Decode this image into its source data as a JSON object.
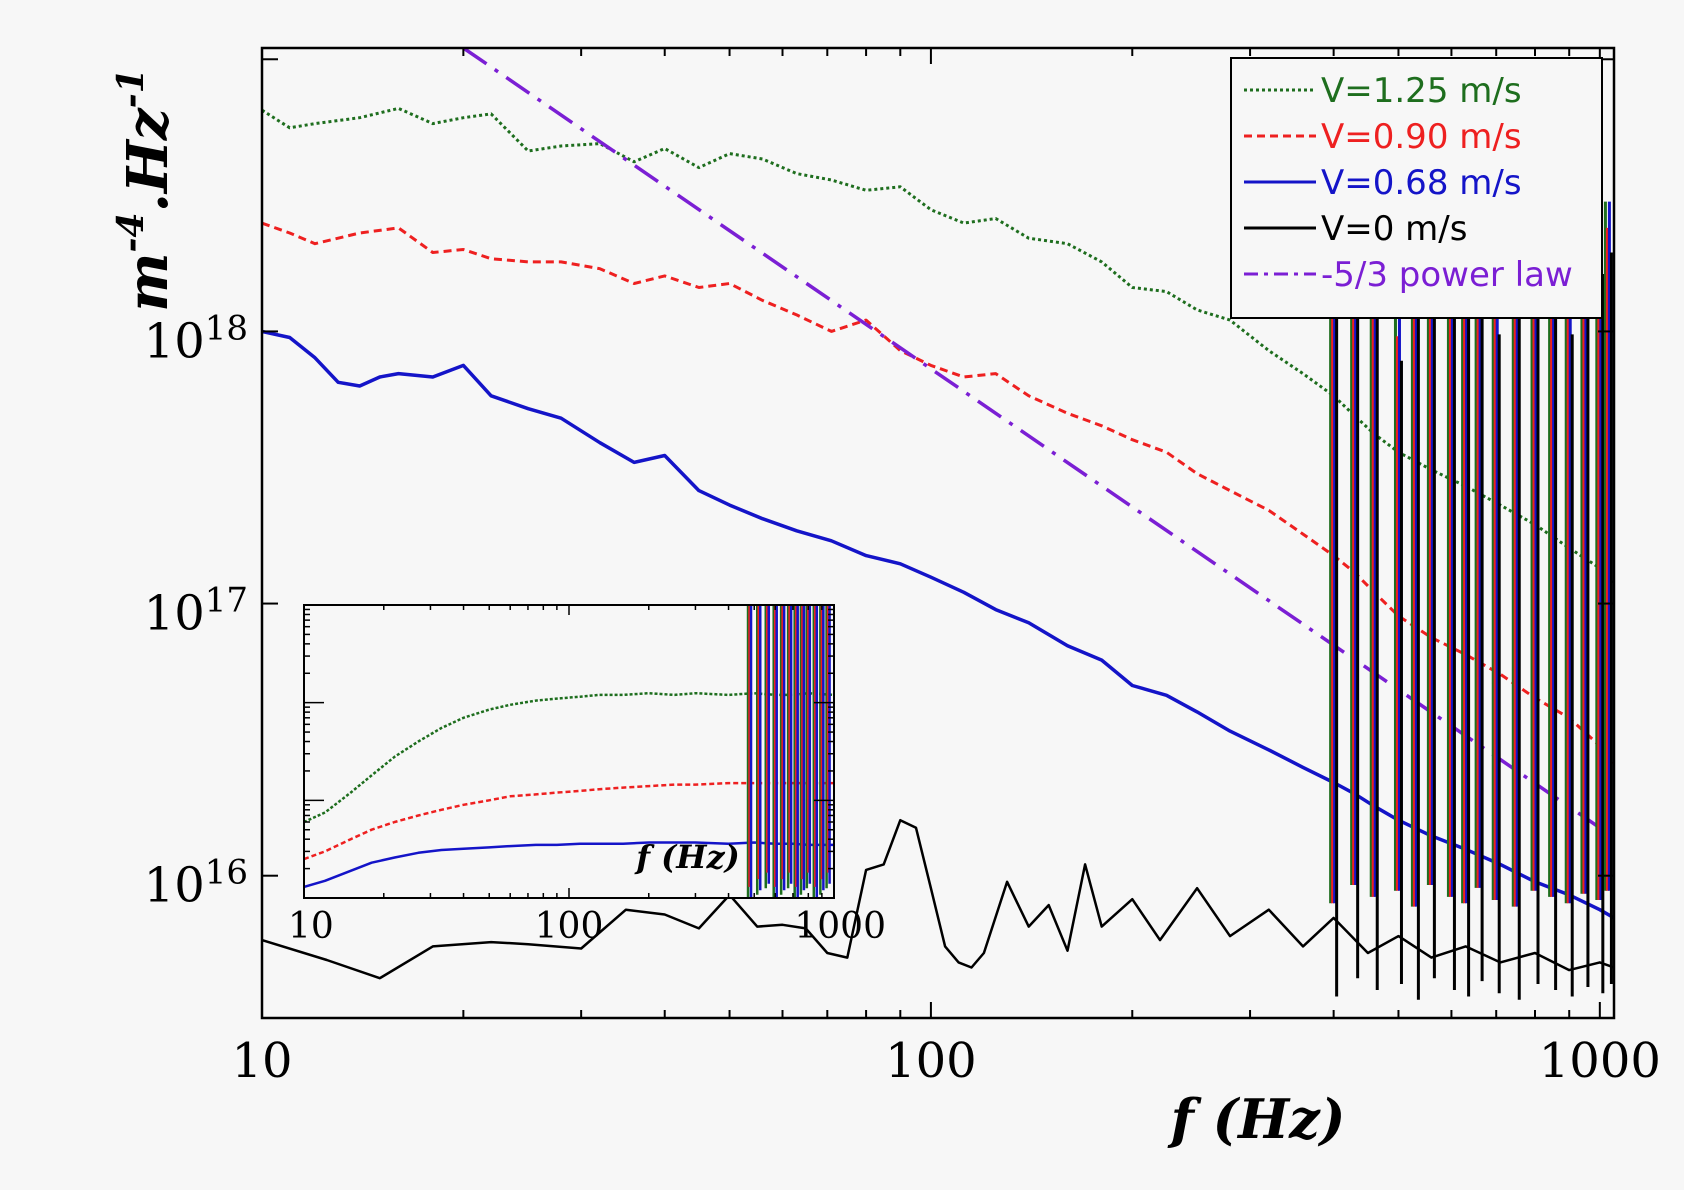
{
  "chart_data": {
    "type": "line",
    "x_scale": "log",
    "y_scale": "log",
    "xlim": [
      10,
      1050
    ],
    "ylim": [
      3000000000000000.0,
      1.1e+19
    ],
    "xlabel": "f (Hz)",
    "ylabel_base": "m",
    "ylabel_exp1": "-4",
    "ylabel_mid": ".Hz",
    "ylabel_exp2": "-1",
    "x_ticks": [
      {
        "value": 10,
        "label": "10"
      },
      {
        "value": 100,
        "label": "100"
      },
      {
        "value": 1000,
        "label": "1000"
      }
    ],
    "y_ticks": [
      {
        "value": 1e+16,
        "base": "10",
        "exp": "16"
      },
      {
        "value": 1e+17,
        "base": "10",
        "exp": "17"
      },
      {
        "value": 1e+18,
        "base": "10",
        "exp": "18"
      }
    ],
    "legend_position": "top-right",
    "series": [
      {
        "name": "V=1.25 m/s",
        "color": "#1e6e1e",
        "dash": "3,3",
        "width": 3,
        "x": [
          10,
          11,
          12,
          14,
          16,
          18,
          20,
          22,
          25,
          28,
          32,
          36,
          40,
          45,
          50,
          56,
          63,
          71,
          80,
          90,
          100,
          112,
          125,
          140,
          160,
          180,
          200,
          225,
          250,
          280,
          320,
          360,
          400,
          430,
          460,
          500,
          560,
          630,
          710,
          800,
          900,
          1000,
          1050
        ],
        "y": [
          6.5e+18,
          5.6e+18,
          5.8e+18,
          6.1e+18,
          6.6e+18,
          5.8e+18,
          6.1e+18,
          6.3e+18,
          4.6e+18,
          4.8e+18,
          4.9e+18,
          4.2e+18,
          4.7e+18,
          4e+18,
          4.5e+18,
          4.3e+18,
          3.8e+18,
          3.6e+18,
          3.3e+18,
          3.4e+18,
          2.8e+18,
          2.5e+18,
          2.6e+18,
          2.2e+18,
          2.1e+18,
          1.8e+18,
          1.45e+18,
          1.4e+18,
          1.2e+18,
          1.1e+18,
          8.5e+17,
          7e+17,
          5.8e+17,
          4.9e+17,
          4.2e+17,
          3.6e+17,
          3.1e+17,
          2.7e+17,
          2.3e+17,
          1.95e+17,
          1.6e+17,
          1.35e+17,
          1.2e+17
        ]
      },
      {
        "name": "V=0.90 m/s",
        "color": "#ee2020",
        "dash": "8,5",
        "width": 3,
        "x": [
          10,
          11,
          12,
          14,
          16,
          18,
          20,
          22,
          25,
          28,
          32,
          36,
          40,
          45,
          50,
          56,
          63,
          71,
          80,
          90,
          100,
          112,
          125,
          140,
          160,
          180,
          200,
          225,
          250,
          280,
          320,
          360,
          400,
          430,
          460,
          500,
          560,
          630,
          710,
          800,
          900,
          1000,
          1050
        ],
        "y": [
          2.5e+18,
          2.3e+18,
          2.1e+18,
          2.3e+18,
          2.4e+18,
          1.95e+18,
          2e+18,
          1.85e+18,
          1.8e+18,
          1.8e+18,
          1.7e+18,
          1.5e+18,
          1.6e+18,
          1.45e+18,
          1.5e+18,
          1.3e+18,
          1.15e+18,
          1e+18,
          1.1e+18,
          8.5e+17,
          7.5e+17,
          6.8e+17,
          7e+17,
          5.8e+17,
          5e+17,
          4.5e+17,
          4e+17,
          3.6e+17,
          3e+17,
          2.6e+17,
          2.2e+17,
          1.8e+17,
          1.5e+17,
          1.3e+17,
          1.1e+17,
          9e+16,
          7.5e+16,
          6.5e+16,
          5.5e+16,
          4.5e+16,
          3.8e+16,
          3e+16,
          2.6e+16
        ]
      },
      {
        "name": "V=0.68 m/s",
        "color": "#1414c8",
        "dash": "",
        "width": 3.5,
        "x": [
          10,
          11,
          12,
          13,
          14,
          15,
          16,
          18,
          20,
          22,
          25,
          28,
          32,
          36,
          40,
          45,
          50,
          56,
          63,
          71,
          80,
          90,
          100,
          112,
          125,
          140,
          160,
          180,
          200,
          225,
          250,
          280,
          320,
          360,
          400,
          430,
          460,
          500,
          560,
          630,
          710,
          800,
          900,
          1000,
          1050
        ],
        "y": [
          1e+18,
          9.5e+17,
          8e+17,
          6.5e+17,
          6.3e+17,
          6.8e+17,
          7e+17,
          6.8e+17,
          7.5e+17,
          5.8e+17,
          5.2e+17,
          4.8e+17,
          3.9e+17,
          3.3e+17,
          3.5e+17,
          2.6e+17,
          2.3e+17,
          2.05e+17,
          1.85e+17,
          1.7e+17,
          1.5e+17,
          1.4e+17,
          1.25e+17,
          1.1e+17,
          9.5e+16,
          8.5e+16,
          7e+16,
          6.2e+16,
          5e+16,
          4.6e+16,
          4e+16,
          3.4e+16,
          2.9e+16,
          2.5e+16,
          2.2e+16,
          2e+16,
          1.8e+16,
          1.6e+16,
          1.4e+16,
          1.25e+16,
          1.1e+16,
          9500000000000000.0,
          8500000000000000.0,
          7500000000000000.0,
          7000000000000000.0
        ]
      },
      {
        "name": "V=0 m/s",
        "color": "#000000",
        "dash": "",
        "width": 2.5,
        "x": [
          10,
          12.5,
          15,
          18,
          22,
          25,
          30,
          35,
          40,
          45,
          50,
          55,
          60,
          65,
          70,
          75,
          80,
          85,
          90,
          95,
          100,
          105,
          110,
          115,
          120,
          130,
          140,
          150,
          160,
          170,
          180,
          200,
          220,
          250,
          280,
          320,
          360,
          400,
          450,
          500,
          560,
          630,
          710,
          800,
          900,
          1000,
          1050
        ],
        "y": [
          5800000000000000.0,
          4900000000000000.0,
          4200000000000000.0,
          5500000000000000.0,
          5700000000000000.0,
          5600000000000000.0,
          5400000000000000.0,
          7500000000000000.0,
          7200000000000000.0,
          6400000000000000.0,
          8500000000000000.0,
          6500000000000000.0,
          6600000000000000.0,
          6400000000000000.0,
          5200000000000000.0,
          5000000000000000.0,
          1.05e+16,
          1.1e+16,
          1.6e+16,
          1.5e+16,
          9000000000000000.0,
          5500000000000000.0,
          4800000000000000.0,
          4600000000000000.0,
          5200000000000000.0,
          9500000000000000.0,
          6500000000000000.0,
          7800000000000000.0,
          5300000000000000.0,
          1.1e+16,
          6500000000000000.0,
          8200000000000000.0,
          5800000000000000.0,
          9000000000000000.0,
          6000000000000000.0,
          7500000000000000.0,
          5500000000000000.0,
          7000000000000000.0,
          5200000000000000.0,
          6000000000000000.0,
          5000000000000000.0,
          5500000000000000.0,
          4800000000000000.0,
          5200000000000000.0,
          4500000000000000.0,
          4800000000000000.0,
          4600000000000000.0
        ]
      },
      {
        "name": "-5/3 power law",
        "color": "#7b1fd4",
        "dash": "28,10,4,10",
        "width": 3.5,
        "x": [
          20,
          1000
        ],
        "y": [
          1.1e+19,
          1.5e+16
        ]
      }
    ],
    "peaks": {
      "x": [
        400,
        430,
        460,
        500,
        530,
        560,
        600,
        630,
        660,
        700,
        750,
        800,
        850,
        900,
        950,
        1000,
        1030
      ],
      "h": [
        3.5e+18,
        1.8e+18,
        3e+18,
        1.2e+18,
        4e+18,
        2e+18,
        5e+18,
        3e+18,
        2.2e+18,
        1.5e+18,
        4.5e+18,
        2e+18,
        3.5e+18,
        1.5e+18,
        3e+18,
        2.5e+18,
        3e+18
      ],
      "l": [
        3600000000000000.0,
        4200000000000000.0,
        3800000000000000.0,
        4000000000000000.0,
        3500000000000000.0,
        4200000000000000.0,
        3800000000000000.0,
        3600000000000000.0,
        4100000000000000.0,
        3700000000000000.0,
        3500000000000000.0,
        4000000000000000.0,
        3800000000000000.0,
        3600000000000000.0,
        3900000000000000.0,
        3700000000000000.0,
        4000000000000000.0
      ]
    },
    "inset": {
      "xlabel": "f (Hz)",
      "xlim": [
        10,
        1000
      ],
      "ylim": [
        1e+17,
        1e+20
      ],
      "x_ticks": [
        {
          "value": 10,
          "label": "10"
        },
        {
          "value": 100,
          "label": "100"
        },
        {
          "value": 1000,
          "label": "1000"
        }
      ],
      "series": [
        {
          "name": "V=1.25 m/s",
          "color": "#1e6e1e",
          "dash": "3,2",
          "x": [
            10,
            12,
            15,
            18,
            22,
            27,
            33,
            40,
            50,
            60,
            75,
            90,
            110,
            130,
            160,
            200,
            250,
            300,
            400,
            500,
            600,
            700,
            800,
            1000
          ],
          "y": [
            6e+17,
            7.5e+17,
            1.2e+18,
            1.8e+18,
            2.8e+18,
            4e+18,
            5.5e+18,
            7e+18,
            8.5e+18,
            9.5e+18,
            1.05e+19,
            1.1e+19,
            1.15e+19,
            1.2e+19,
            1.2e+19,
            1.25e+19,
            1.2e+19,
            1.25e+19,
            1.2e+19,
            1.25e+19,
            1.2e+19,
            1.2e+19,
            1.25e+19,
            1.2e+19
          ]
        },
        {
          "name": "V=0.90 m/s",
          "color": "#ee2020",
          "dash": "5,3",
          "x": [
            10,
            12,
            15,
            18,
            22,
            27,
            33,
            40,
            50,
            60,
            75,
            90,
            110,
            130,
            160,
            200,
            250,
            300,
            400,
            500,
            600,
            700,
            800,
            1000
          ],
          "y": [
            2.5e+17,
            3e+17,
            4e+17,
            5e+17,
            6e+17,
            7e+17,
            8e+17,
            9e+17,
            1e+18,
            1.1e+18,
            1.15e+18,
            1.2e+18,
            1.25e+18,
            1.3e+18,
            1.35e+18,
            1.4e+18,
            1.45e+18,
            1.45e+18,
            1.5e+18,
            1.5e+18,
            1.5e+18,
            1.5e+18,
            1.5e+18,
            1.5e+18
          ]
        },
        {
          "name": "V=0.68 m/s",
          "color": "#1414c8",
          "dash": "",
          "x": [
            10,
            12,
            15,
            18,
            22,
            27,
            33,
            40,
            50,
            60,
            75,
            90,
            110,
            130,
            160,
            200,
            250,
            300,
            400,
            500,
            600,
            700,
            800,
            1000
          ],
          "y": [
            1.3e+17,
            1.5e+17,
            1.9e+17,
            2.3e+17,
            2.6e+17,
            2.9e+17,
            3.1e+17,
            3.2e+17,
            3.3e+17,
            3.4e+17,
            3.5e+17,
            3.5e+17,
            3.6e+17,
            3.6e+17,
            3.6e+17,
            3.7e+17,
            3.7e+17,
            3.7e+17,
            3.6e+17,
            3.7e+17,
            3.6e+17,
            3.6e+17,
            3.5e+17,
            3.5e+17
          ]
        }
      ]
    }
  }
}
